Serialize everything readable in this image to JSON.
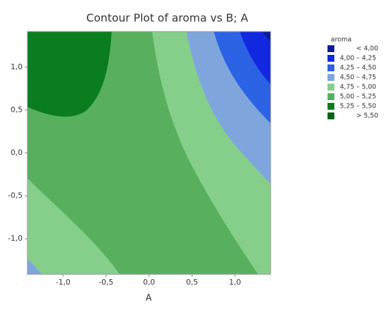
{
  "chart_data": {
    "type": "contour",
    "title": "Contour Plot of aroma vs B; A",
    "x_label": "A",
    "xlim": [
      -1.414,
      1.414
    ],
    "ylim": [
      -1.414,
      1.414
    ],
    "xticks": [
      {
        "value": -1,
        "label": "-1,0"
      },
      {
        "value": -0.5,
        "label": "-0,5"
      },
      {
        "value": 0,
        "label": "0,0"
      },
      {
        "value": 0.5,
        "label": "0,5"
      },
      {
        "value": 1,
        "label": "1,0"
      }
    ],
    "yticks": [
      {
        "value": -1,
        "label": "-1,0"
      },
      {
        "value": -0.5,
        "label": "-0,5"
      },
      {
        "value": 0,
        "label": "0,0"
      },
      {
        "value": 0.5,
        "label": "0,5"
      },
      {
        "value": 1,
        "label": "1,0"
      }
    ],
    "legend_title": "aroma",
    "levels": [
      {
        "label": "< 4,00",
        "color": "#0d1a9a"
      },
      {
        "label": "4,00 – 4,25",
        "color": "#1228e0"
      },
      {
        "label": "4,25 – 4,50",
        "color": "#2c62e4"
      },
      {
        "label": "4,50 – 4,75",
        "color": "#7fa6dc"
      },
      {
        "label": "4,75 – 5,00",
        "color": "#86cf8b"
      },
      {
        "label": "5,00 – 5,25",
        "color": "#58b05e"
      },
      {
        "label": "5,25 – 5,50",
        "color": "#0a7d1f"
      },
      {
        "label": "> 5,50",
        "color": "#06621a"
      }
    ]
  }
}
